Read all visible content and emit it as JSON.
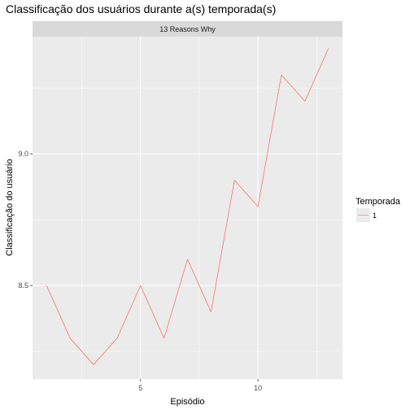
{
  "chart_data": {
    "type": "line",
    "title": "Classificação dos usuários durante a(s) temporada(s)",
    "facet_label": "13 Reasons Why",
    "xlabel": "Episódio",
    "ylabel": "Classificação do usuário",
    "xlim": [
      0.4,
      13.6
    ],
    "ylim": [
      8.145,
      9.445
    ],
    "x_ticks": [
      5,
      10
    ],
    "x_minor_ticks": [
      2.5,
      7.5,
      12.5
    ],
    "y_ticks": [
      8.5,
      9.0
    ],
    "y_minor_ticks": [
      8.25,
      8.75,
      9.25
    ],
    "grid": true,
    "legend_position": "right",
    "legend_title": "Temporada",
    "series": [
      {
        "name": "1",
        "color": "#F8766D",
        "x": [
          1,
          2,
          3,
          4,
          5,
          6,
          7,
          8,
          9,
          10,
          11,
          12,
          13
        ],
        "values": [
          8.5,
          8.3,
          8.2,
          8.3,
          8.5,
          8.3,
          8.6,
          8.4,
          8.9,
          8.8,
          9.3,
          9.2,
          9.4
        ]
      }
    ]
  },
  "colors": {
    "panel_background": "#EBEBEB",
    "strip_background": "#D9D9D9",
    "grid": "#FFFFFF",
    "series_1": "#F8766D"
  }
}
